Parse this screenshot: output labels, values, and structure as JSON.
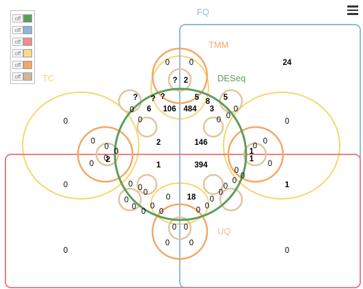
{
  "menu_icon": "hamburger-menu-icon",
  "legend": [
    {
      "toggle": "off",
      "color": "#5a9e5a"
    },
    {
      "toggle": "off",
      "color": "#8fb6d9"
    },
    {
      "toggle": "off",
      "color": "#f08c8c"
    },
    {
      "toggle": "off",
      "color": "#f7dc8a"
    },
    {
      "toggle": "off",
      "color": "#f4a765"
    },
    {
      "toggle": "off",
      "color": "#d4b896"
    }
  ],
  "sets": {
    "fq": {
      "label": "FQ",
      "color": "#8fbbdc"
    },
    "tmm": {
      "label": "TMM",
      "color": "#f4a765"
    },
    "deseq": {
      "label": "DESeq",
      "color": "#5a9e5a"
    },
    "tc": {
      "label": "TC",
      "color": "#f5d66e"
    },
    "uq": {
      "label": "UQ",
      "color": "#e4c49b"
    },
    "rq": {
      "color": "#ee7d85"
    }
  },
  "counts": [
    {
      "v": "0",
      "bold": false
    },
    {
      "v": "0",
      "bold": false
    },
    {
      "v": "?",
      "bold": true
    },
    {
      "v": "2",
      "bold": true
    },
    {
      "v": "24",
      "bold": true
    },
    {
      "v": "?",
      "bold": true
    },
    {
      "v": "?",
      "bold": true
    },
    {
      "v": "?",
      "bold": true
    },
    {
      "v": "5",
      "bold": true
    },
    {
      "v": "8",
      "bold": true
    },
    {
      "v": "5",
      "bold": true
    },
    {
      "v": "6",
      "bold": true
    },
    {
      "v": "106",
      "bold": true
    },
    {
      "v": "484",
      "bold": true
    },
    {
      "v": "3",
      "bold": true
    },
    {
      "v": "0",
      "bold": false
    },
    {
      "v": "0",
      "bold": false
    },
    {
      "v": "0",
      "bold": false
    },
    {
      "v": "0",
      "bold": false
    },
    {
      "v": "0",
      "bold": false
    },
    {
      "v": "0",
      "bold": false
    },
    {
      "v": "0",
      "bold": false
    },
    {
      "v": "0",
      "bold": false
    },
    {
      "v": "0",
      "bold": false
    },
    {
      "v": "0",
      "bold": false
    },
    {
      "v": "0",
      "bold": false
    },
    {
      "v": "2",
      "bold": true
    },
    {
      "v": "146",
      "bold": true
    },
    {
      "v": "1",
      "bold": true
    },
    {
      "v": "0",
      "bold": false
    },
    {
      "v": "1",
      "bold": true
    },
    {
      "v": "0",
      "bold": false
    },
    {
      "v": "2",
      "bold": true
    },
    {
      "v": "0",
      "bold": false
    },
    {
      "v": "0",
      "bold": false
    },
    {
      "v": "1",
      "bold": true
    },
    {
      "v": "394",
      "bold": true
    },
    {
      "v": "0",
      "bold": false
    },
    {
      "v": "0",
      "bold": false
    },
    {
      "v": "0",
      "bold": false
    },
    {
      "v": "0",
      "bold": false
    },
    {
      "v": "1",
      "bold": true
    },
    {
      "v": "0",
      "bold": false
    },
    {
      "v": "0",
      "bold": false
    },
    {
      "v": "0",
      "bold": false
    },
    {
      "v": "0",
      "bold": false
    },
    {
      "v": "0",
      "bold": false
    },
    {
      "v": "18",
      "bold": true
    },
    {
      "v": "0",
      "bold": false
    },
    {
      "v": "0",
      "bold": false
    },
    {
      "v": "0",
      "bold": false
    },
    {
      "v": "0",
      "bold": false
    },
    {
      "v": "0",
      "bold": false
    },
    {
      "v": "0",
      "bold": false
    },
    {
      "v": "0",
      "bold": false
    },
    {
      "v": "0",
      "bold": false
    },
    {
      "v": "0",
      "bold": false
    },
    {
      "v": "0",
      "bold": false
    },
    {
      "v": "0",
      "bold": false
    },
    {
      "v": "0",
      "bold": false
    },
    {
      "v": "0",
      "bold": false
    },
    {
      "v": "0",
      "bold": false
    },
    {
      "v": "0",
      "bold": false
    }
  ]
}
